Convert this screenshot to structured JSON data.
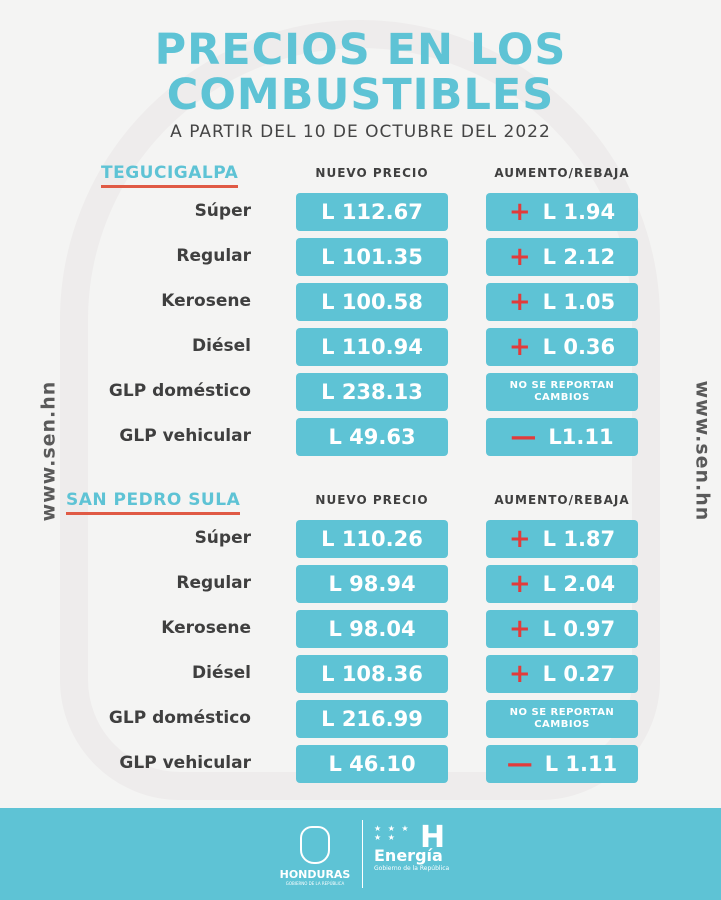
{
  "title_line1": "PRECIOS EN LOS",
  "title_line2": "COMBUSTIBLES",
  "subtitle": "A PARTIR DEL 10 DE OCTUBRE DEL 2022",
  "side_text": "www.sen.hn",
  "colors": {
    "accent": "#5ec3d5",
    "increase": "#e23b3b",
    "underline": "#e05a45"
  },
  "sections": [
    {
      "city": "TEGUCIGALPA",
      "price_header": "NUEVO PRECIO",
      "change_header": "AUMENTO/REBAJA",
      "rows": [
        {
          "fuel": "Súper",
          "price": "L 112.67",
          "sign": "+",
          "change": "L 1.94"
        },
        {
          "fuel": "Regular",
          "price": "L 101.35",
          "sign": "+",
          "change": "L 2.12"
        },
        {
          "fuel": "Kerosene",
          "price": "L 100.58",
          "sign": "+",
          "change": "L 1.05"
        },
        {
          "fuel": "Diésel",
          "price": "L 110.94",
          "sign": "+",
          "change": "L 0.36"
        },
        {
          "fuel": "GLP doméstico",
          "price": "L 238.13",
          "note": "NO SE REPORTAN CAMBIOS"
        },
        {
          "fuel": "GLP vehicular",
          "price": "L 49.63",
          "sign": "—",
          "change": "L1.11"
        }
      ]
    },
    {
      "city": "SAN PEDRO SULA",
      "price_header": "NUEVO PRECIO",
      "change_header": "AUMENTO/REBAJA",
      "rows": [
        {
          "fuel": "Súper",
          "price": "L 110.26",
          "sign": "+",
          "change": "L 1.87"
        },
        {
          "fuel": "Regular",
          "price": "L 98.94",
          "sign": "+",
          "change": "L 2.04"
        },
        {
          "fuel": "Kerosene",
          "price": "L 98.04",
          "sign": "+",
          "change": "L 0.97"
        },
        {
          "fuel": "Diésel",
          "price": "L 108.36",
          "sign": "+",
          "change": "L 0.27"
        },
        {
          "fuel": "GLP doméstico",
          "price": "L 216.99",
          "note": "NO SE REPORTAN CAMBIOS"
        },
        {
          "fuel": "GLP vehicular",
          "price": "L 46.10",
          "sign": "—",
          "change": "L 1.11"
        }
      ]
    }
  ],
  "footer": {
    "honduras": "HONDURAS",
    "honduras_sub": "GOBIERNO DE LA REPÚBLICA",
    "energia": "Energía",
    "energia_sub": "Gobierno de la República",
    "h_letter": "H"
  }
}
